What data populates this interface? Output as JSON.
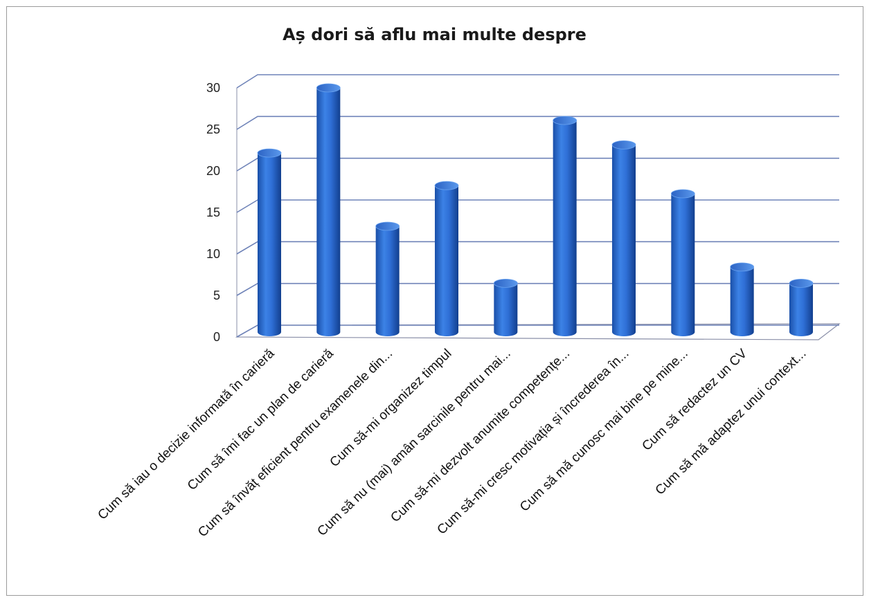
{
  "chart_data": {
    "type": "bar",
    "title": "Aș dori să aflu mai multe despre",
    "categories": [
      "Cum să iau o decizie informată în carieră",
      "Cum să îmi fac un plan de carieră",
      "Cum să învăț eficient pentru examenele din...",
      "Cum să-mi organizez timpul",
      "Cum să nu (mai) amân sarcinile pentru mai...",
      "Cum să-mi dezvolt anumite competențe...",
      "Cum să-mi cresc motivația și încrederea în...",
      "Cum să mă cunosc mai bine pe mine...",
      "Cum să redactez un CV",
      "Cum să mă adaptez unui context..."
    ],
    "values": [
      22,
      30,
      13,
      18,
      6,
      26,
      23,
      17,
      8,
      6
    ],
    "ylim": [
      0,
      30
    ],
    "yticks": [
      "0",
      "5",
      "10",
      "15",
      "20",
      "25",
      "30"
    ],
    "grid": true,
    "colors": {
      "bar": "#2f6fd6",
      "grid": "#6f83b8"
    }
  }
}
